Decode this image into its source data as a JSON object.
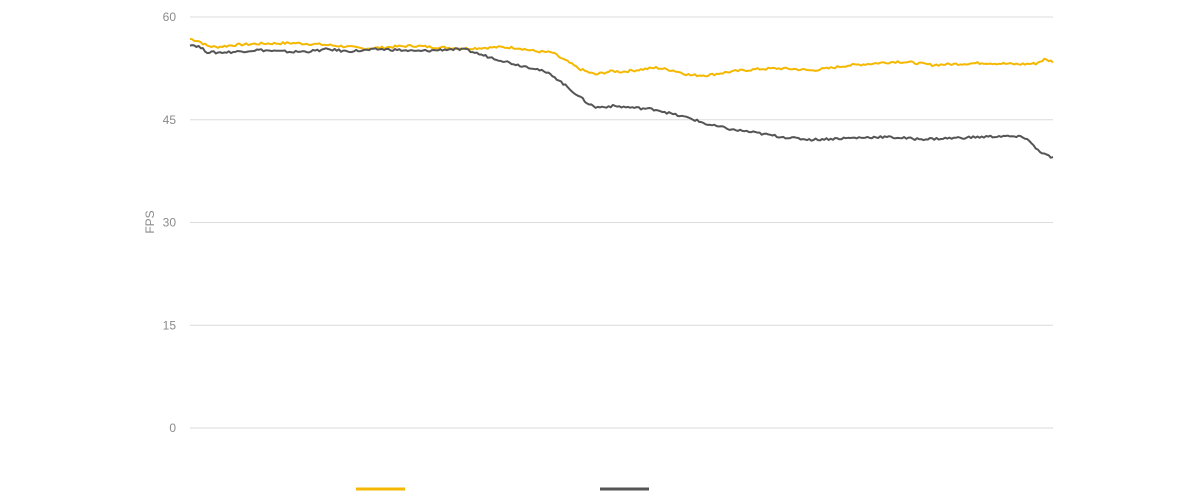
{
  "chart_data": {
    "type": "line",
    "title": "",
    "xlabel": "",
    "ylabel": "FPS",
    "ylim": [
      0,
      60
    ],
    "yticks": [
      0,
      15,
      30,
      45,
      60
    ],
    "yticks_labels": [
      "0",
      "15",
      "30",
      "45",
      "60"
    ],
    "xlim": [
      0,
      100
    ],
    "grid": true,
    "legend_placement": "bottom",
    "series": [
      {
        "color": "#F5B800",
        "x": [
          0,
          1,
          2,
          3,
          5,
          8,
          12,
          15,
          18,
          20,
          22,
          24,
          26,
          28,
          30,
          32,
          34,
          36,
          38,
          40,
          42,
          43,
          44,
          45,
          46,
          47,
          48,
          49,
          50,
          52,
          54,
          56,
          58,
          60,
          62,
          64,
          66,
          68,
          70,
          72,
          74,
          76,
          78,
          80,
          82,
          84,
          86,
          88,
          90,
          92,
          94,
          96,
          98,
          99,
          100
        ],
        "y": [
          56.8,
          56.5,
          55.8,
          55.6,
          55.9,
          56.1,
          56.2,
          56.0,
          55.7,
          55.4,
          55.5,
          55.7,
          55.8,
          55.6,
          55.5,
          55.4,
          55.5,
          55.6,
          55.5,
          55.0,
          54.8,
          54.0,
          53.3,
          52.5,
          52.0,
          51.6,
          51.9,
          52.1,
          52.0,
          52.3,
          52.6,
          52.2,
          51.5,
          51.5,
          51.9,
          52.2,
          52.4,
          52.5,
          52.4,
          52.2,
          52.5,
          52.9,
          53.1,
          53.3,
          53.5,
          53.3,
          53.0,
          53.1,
          53.2,
          53.3,
          53.2,
          53.1,
          53.2,
          53.8,
          53.5
        ]
      },
      {
        "color": "#555555",
        "x": [
          0,
          1,
          2,
          3,
          5,
          8,
          10,
          12,
          14,
          16,
          18,
          20,
          22,
          24,
          26,
          28,
          30,
          32,
          34,
          36,
          38,
          40,
          42,
          44,
          45,
          46,
          47,
          48,
          49,
          50,
          52,
          54,
          56,
          58,
          60,
          62,
          63,
          64,
          66,
          68,
          70,
          72,
          74,
          76,
          78,
          80,
          82,
          84,
          86,
          88,
          90,
          92,
          94,
          96,
          97,
          98,
          99,
          100
        ],
        "y": [
          56.0,
          55.7,
          54.9,
          54.8,
          54.9,
          55.2,
          55.0,
          54.9,
          55.0,
          55.3,
          55.0,
          55.1,
          55.3,
          55.2,
          55.0,
          55.1,
          55.3,
          55.2,
          54.4,
          53.7,
          53.0,
          52.5,
          51.5,
          49.5,
          48.5,
          47.5,
          46.8,
          46.9,
          47.0,
          46.9,
          46.7,
          46.5,
          45.8,
          45.2,
          44.3,
          43.8,
          43.5,
          43.4,
          43.0,
          42.6,
          42.3,
          42.1,
          42.2,
          42.3,
          42.4,
          42.5,
          42.4,
          42.2,
          42.2,
          42.3,
          42.4,
          42.5,
          42.6,
          42.5,
          42.3,
          40.8,
          40.0,
          39.4
        ]
      }
    ]
  }
}
